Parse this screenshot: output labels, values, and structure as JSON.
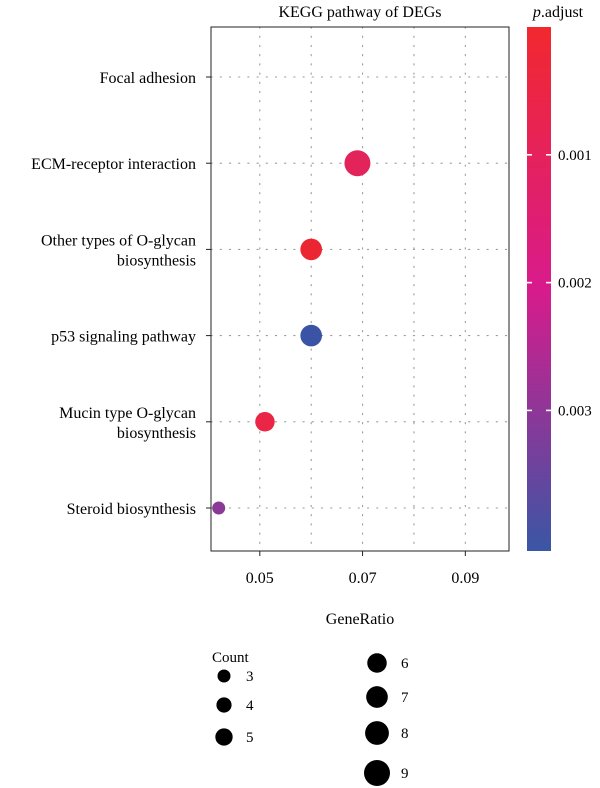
{
  "chart_data": {
    "type": "scatter",
    "title": "KEGG pathway of DEGs",
    "xlabel": "GeneRatio",
    "ylabel": "",
    "xlim": [
      0.0405,
      0.0985
    ],
    "x_ticks": [
      0.05,
      0.07,
      0.09
    ],
    "x_tick_labels": [
      "0.05",
      "0.07",
      "0.09"
    ],
    "grid": true,
    "categories": [
      {
        "label_lines": [
          "Focal adhesion"
        ]
      },
      {
        "label_lines": [
          "ECM-receptor interaction"
        ]
      },
      {
        "label_lines": [
          "Other types of O-glycan",
          "biosynthesis"
        ]
      },
      {
        "label_lines": [
          "p53 signaling pathway"
        ]
      },
      {
        "label_lines": [
          "Mucin type O-glycan",
          "biosynthesis"
        ]
      },
      {
        "label_lines": [
          "Steroid biosynthesis"
        ]
      }
    ],
    "points": [
      {
        "category_index": 1,
        "gene_ratio": 0.069,
        "count": 9,
        "p_adjust": 0.0009,
        "color": "#e2245a"
      },
      {
        "category_index": 2,
        "gene_ratio": 0.06,
        "count": 7,
        "p_adjust": 0.0003,
        "color": "#ec2532"
      },
      {
        "category_index": 3,
        "gene_ratio": 0.06,
        "count": 7,
        "p_adjust": 0.0039,
        "color": "#3a53a4"
      },
      {
        "category_index": 4,
        "gene_ratio": 0.051,
        "count": 6,
        "p_adjust": 0.0003,
        "color": "#ea2545"
      },
      {
        "category_index": 5,
        "gene_ratio": 0.042,
        "count": 3,
        "p_adjust": 0.0029,
        "color": "#8a3a96"
      }
    ],
    "colorbar": {
      "title_italic": "p",
      "title_rest": ".adjust",
      "range": [
        0.0,
        0.0041
      ],
      "ticks": [
        0.001,
        0.002,
        0.003
      ],
      "tick_labels": [
        "0.001",
        "0.002",
        "0.003"
      ],
      "low_color": "#f2282e",
      "mid_color": "#d81b8c",
      "high_color": "#3a56a5"
    },
    "size_legend": {
      "title": "Count",
      "range": [
        3,
        9
      ],
      "items": [
        3,
        4,
        5,
        6,
        7,
        8,
        9
      ],
      "labels": [
        "3",
        "4",
        "5",
        "6",
        "7",
        "8",
        "9"
      ]
    }
  }
}
